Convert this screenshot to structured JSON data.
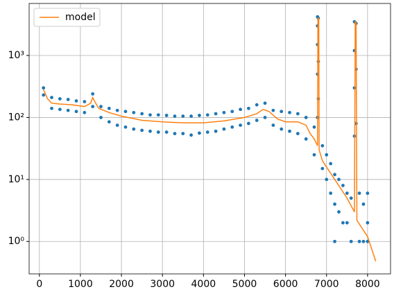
{
  "chart_data": {
    "type": "scatter",
    "log_y": true,
    "grid": true,
    "legend": "upper left",
    "xlim": [
      -250,
      8560
    ],
    "ylim": [
      0.3,
      6900
    ],
    "xticks": [
      0,
      1000,
      2000,
      3000,
      4000,
      5000,
      6000,
      7000,
      8000
    ],
    "yticks": [
      {
        "value": 1,
        "label": "10⁰"
      },
      {
        "value": 10,
        "label": "10¹"
      },
      {
        "value": 100,
        "label": "10²"
      },
      {
        "value": 1000,
        "label": "10³"
      }
    ],
    "series": [
      {
        "color": "#1f77b4",
        "x": [
          100,
          100,
          300,
          300,
          500,
          500,
          700,
          700,
          900,
          900,
          1100,
          1100,
          1300,
          1300,
          1500,
          1500,
          1700,
          1700,
          1900,
          1900,
          2100,
          2100,
          2300,
          2300,
          2500,
          2500,
          2700,
          2700,
          2900,
          2900,
          3100,
          3100,
          3300,
          3300,
          3500,
          3500,
          3700,
          3700,
          3900,
          3900,
          4100,
          4100,
          4300,
          4300,
          4500,
          4500,
          4700,
          4700,
          4900,
          4900,
          5100,
          5100,
          5300,
          5300,
          5500,
          5500,
          5700,
          5700,
          5900,
          5900,
          6100,
          6100,
          6300,
          6300,
          6500,
          6500,
          6700,
          6700,
          6780,
          6780,
          6780,
          6780,
          6780,
          6800,
          6800,
          6800,
          6900,
          6900,
          7000,
          7000,
          7100,
          7100,
          7200,
          7200,
          7200,
          7300,
          7300,
          7400,
          7400,
          7500,
          7500,
          7600,
          7600,
          7680,
          7680,
          7680,
          7680,
          7720,
          7720,
          7720,
          7800,
          7800,
          7900,
          7900,
          8000,
          8000,
          8000
        ],
        "values": [
          300,
          230,
          210,
          140,
          200,
          135,
          195,
          130,
          185,
          125,
          180,
          120,
          240,
          150,
          150,
          100,
          140,
          85,
          130,
          75,
          125,
          70,
          120,
          65,
          115,
          62,
          110,
          60,
          110,
          58,
          108,
          58,
          105,
          55,
          105,
          55,
          105,
          52,
          108,
          56,
          110,
          58,
          115,
          60,
          120,
          65,
          125,
          70,
          135,
          75,
          140,
          80,
          160,
          90,
          170,
          100,
          130,
          75,
          125,
          65,
          120,
          60,
          115,
          55,
          100,
          45,
          70,
          25,
          4200,
          3000,
          1500,
          500,
          100,
          4000,
          800,
          200,
          35,
          15,
          25,
          10,
          18,
          6,
          12,
          4,
          1,
          10,
          3,
          8,
          2,
          6,
          2,
          5,
          1,
          3500,
          1200,
          300,
          50,
          3300,
          600,
          80,
          6,
          1,
          4,
          1,
          6,
          2,
          1
        ]
      },
      {
        "name": "model",
        "type": "line",
        "color": "#ff7f0e",
        "x": [
          100,
          200,
          300,
          500,
          800,
          1100,
          1250,
          1300,
          1350,
          1450,
          1700,
          2000,
          2500,
          3000,
          3500,
          4000,
          4500,
          5000,
          5300,
          5450,
          5600,
          5800,
          6000,
          6300,
          6500,
          6600,
          6700,
          6780,
          6790,
          6810,
          6820,
          6900,
          7200,
          7500,
          7680,
          7700,
          7720,
          7740,
          8000,
          8200
        ],
        "values": [
          280,
          200,
          170,
          165,
          160,
          150,
          170,
          210,
          180,
          140,
          120,
          105,
          90,
          85,
          82,
          82,
          88,
          100,
          115,
          135,
          125,
          95,
          85,
          85,
          75,
          55,
          45,
          35,
          4000,
          4000,
          30,
          20,
          10,
          5,
          3,
          3500,
          3500,
          2.2,
          1.2,
          0.48
        ]
      }
    ]
  }
}
